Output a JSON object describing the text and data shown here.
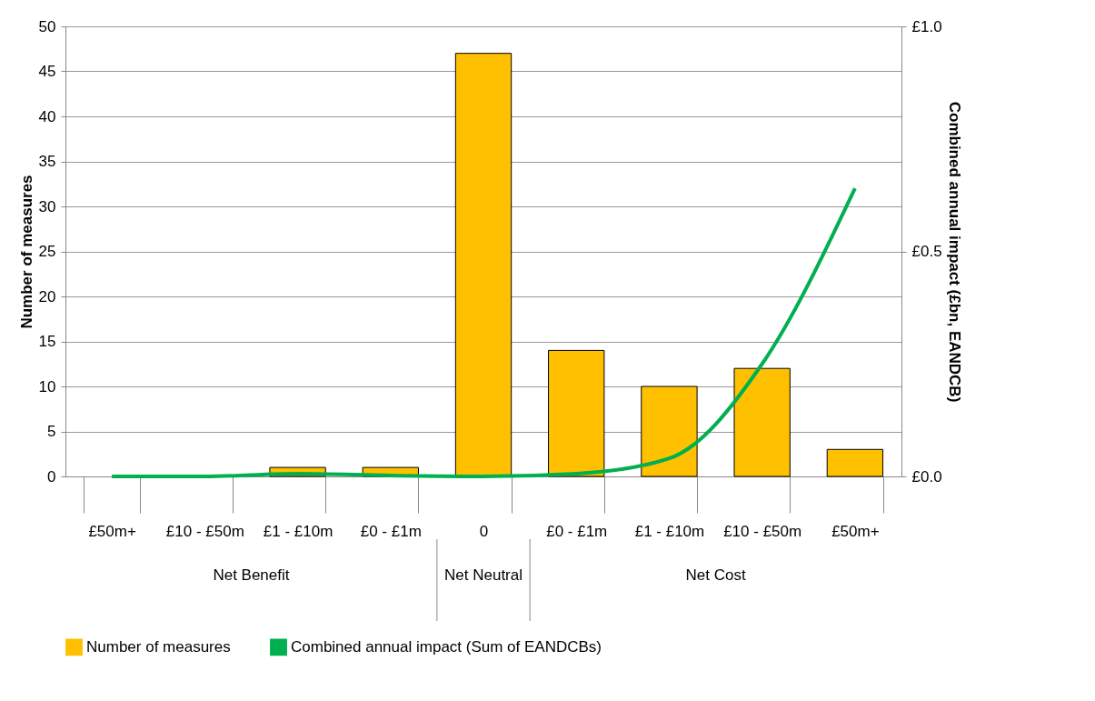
{
  "chart_data": {
    "type": "bar",
    "ylabel": "Number of measures",
    "y2label": "Combined annual impact (£bn, EANDCB)",
    "categories": [
      "£50m+",
      "£10 - £50m",
      "£1 - £10m",
      "£0 - £1m",
      "0",
      "£0 - £1m",
      "£1 - £10m",
      "£10 - £50m",
      "£50m+"
    ],
    "series": [
      {
        "name": "Number of measures",
        "color": "#ffc000",
        "values": [
          0,
          0,
          1,
          1,
          47,
          14,
          10,
          12,
          3
        ]
      },
      {
        "name": "Combined annual impact (Sum of EANDCBs)",
        "type": "line",
        "axis": "y2",
        "color": "#00b050",
        "values": [
          0,
          0,
          0.006,
          0.002,
          0,
          0.006,
          0.04,
          0.25,
          0.64
        ]
      }
    ],
    "ylim": [
      0,
      50
    ],
    "yticks": [
      0,
      5,
      10,
      15,
      20,
      25,
      30,
      35,
      40,
      45,
      50
    ],
    "y2lim": [
      0,
      1
    ],
    "y2ticks": [
      {
        "value": 0,
        "label": "£0.0"
      },
      {
        "value": 0.5,
        "label": "£0.5"
      },
      {
        "value": 1,
        "label": "£1.0"
      }
    ],
    "annotations": [
      "Net Benefit",
      "Net Neutral",
      "Net Cost"
    ],
    "grid": "y",
    "legend": "bottom"
  }
}
